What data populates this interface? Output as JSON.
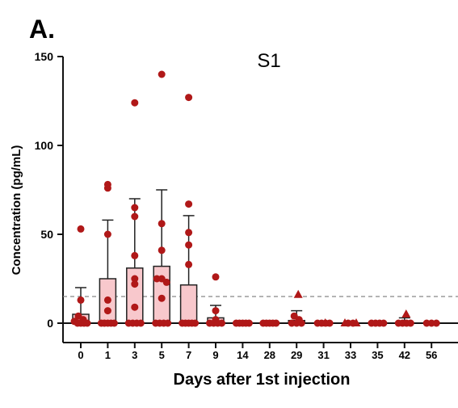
{
  "panel_label": "A.",
  "chart_data": {
    "type": "bar",
    "title": "S1",
    "xlabel": "Days after 1st injection",
    "ylabel": "Concentration (pg/mL)",
    "ylim": [
      -10,
      150
    ],
    "yticks": [
      0,
      50,
      100,
      150
    ],
    "reference_line": 15,
    "colors": {
      "bar_fill": "#f8c8cc",
      "bar_stroke": "#222222",
      "point": "#b01818",
      "reference": "#888888",
      "axis": "#111111"
    },
    "categories": [
      "0",
      "1",
      "3",
      "5",
      "7",
      "9",
      "14",
      "28",
      "29",
      "31",
      "33",
      "35",
      "42",
      "56"
    ],
    "means": [
      5,
      25,
      31,
      32,
      21.5,
      3,
      0,
      0,
      1.5,
      0,
      0,
      0,
      1,
      0
    ],
    "error_upper": [
      20,
      58,
      70,
      75,
      60.5,
      10,
      0,
      0,
      7,
      0,
      0,
      0,
      3,
      0
    ],
    "points": [
      [
        53,
        13,
        4,
        2,
        1,
        0,
        0,
        0,
        0
      ],
      [
        78,
        76,
        50,
        13,
        7,
        0,
        0,
        0,
        0,
        0
      ],
      [
        124,
        65,
        60,
        38,
        25,
        22,
        9,
        0,
        0,
        0,
        0
      ],
      [
        140,
        56,
        41,
        25,
        25,
        23,
        14,
        0,
        0,
        0,
        0
      ],
      [
        127,
        67,
        51,
        44,
        33,
        0,
        0,
        0,
        0,
        0
      ],
      [
        26,
        7,
        2,
        0,
        0,
        0,
        0
      ],
      [
        0,
        0,
        0,
        0,
        0
      ],
      [
        0,
        0,
        0,
        0,
        0
      ],
      [
        4,
        2,
        0,
        0,
        0
      ],
      [
        0,
        0,
        0,
        0
      ],
      [
        0,
        0
      ],
      [
        0,
        0,
        0,
        0
      ],
      [
        0,
        0,
        0,
        0
      ],
      [
        0,
        0,
        0
      ]
    ],
    "triangle_points": [
      [],
      [],
      [],
      [],
      [],
      [],
      [],
      [],
      [
        16
      ],
      [
        0
      ],
      [
        0,
        0
      ],
      [],
      [
        5
      ],
      []
    ]
  }
}
